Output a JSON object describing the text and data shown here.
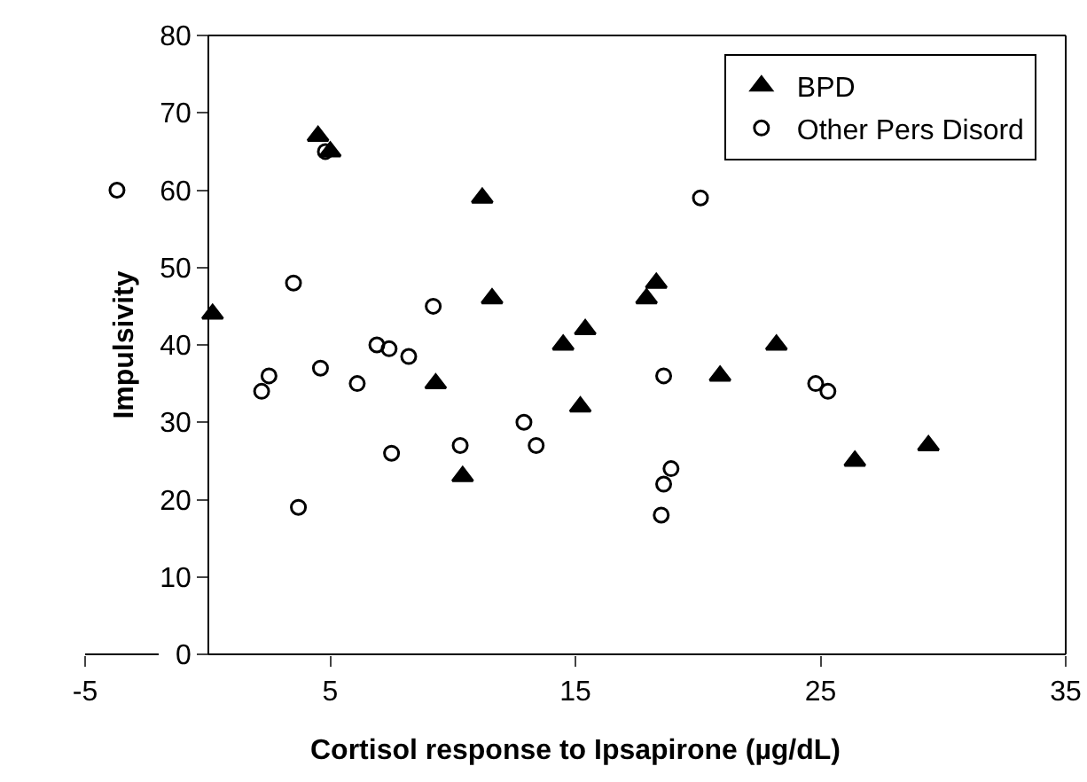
{
  "chart_data": {
    "type": "scatter",
    "xlabel": "Cortisol response to Ipsapirone (µg/dL)",
    "ylabel": "Impulsivity",
    "xlim": [
      -5,
      35
    ],
    "xticks": [
      -5,
      5,
      15,
      25,
      35
    ],
    "ylim": [
      0,
      80
    ],
    "yticks": [
      0,
      10,
      20,
      30,
      40,
      50,
      60,
      70,
      80
    ],
    "grid": false,
    "legend": "top right",
    "series": [
      {
        "name": "BPD",
        "color": "#000000",
        "marker": "triangle",
        "x": [
          0.2,
          4.5,
          5.0,
          11.2,
          11.6,
          9.3,
          10.4,
          14.5,
          15.4,
          15.2,
          17.9,
          18.3,
          20.9,
          23.2,
          26.4,
          29.4
        ],
        "values": [
          44,
          67,
          65,
          59,
          46,
          35,
          23,
          40,
          42,
          32,
          46,
          48,
          36,
          40,
          25,
          27
        ]
      },
      {
        "name": "Other Pers Disord",
        "color": "#000000",
        "marker": "circle",
        "x": [
          -3.7,
          3.5,
          4.8,
          9.2,
          6.9,
          7.4,
          8.2,
          4.6,
          2.5,
          2.2,
          6.1,
          7.5,
          3.7,
          10.3,
          12.9,
          13.4,
          20.1,
          18.6,
          24.8,
          25.3,
          18.9,
          18.6,
          18.5
        ],
        "values": [
          60,
          48,
          65,
          45,
          40,
          39.5,
          38.5,
          37,
          36,
          34,
          35,
          26,
          19,
          27,
          30,
          27,
          59,
          36,
          35,
          34,
          24,
          22,
          18
        ]
      }
    ]
  }
}
